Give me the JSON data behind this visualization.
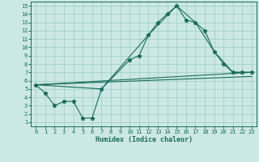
{
  "xlabel": "Humidex (Indice chaleur)",
  "bg_color": "#cce8e5",
  "grid_color": "#99ccc8",
  "line_color": "#1a6b5a",
  "xlim": [
    -0.5,
    23.5
  ],
  "ylim": [
    0.5,
    15.5
  ],
  "xticks": [
    0,
    1,
    2,
    3,
    4,
    5,
    6,
    7,
    8,
    9,
    10,
    11,
    12,
    13,
    14,
    15,
    16,
    17,
    18,
    19,
    20,
    21,
    22,
    23
  ],
  "yticks": [
    1,
    2,
    3,
    4,
    5,
    6,
    7,
    8,
    9,
    10,
    11,
    12,
    13,
    14,
    15
  ],
  "main_line_x": [
    0,
    1,
    2,
    3,
    4,
    5,
    6,
    7,
    10,
    11,
    12,
    13,
    14,
    15,
    16,
    17,
    18,
    19,
    20,
    21,
    22,
    23
  ],
  "main_line_y": [
    5.5,
    4.5,
    3.0,
    3.5,
    3.5,
    1.5,
    1.5,
    5.0,
    8.5,
    9.0,
    11.5,
    13.0,
    14.0,
    15.0,
    13.3,
    13.0,
    12.0,
    9.5,
    8.0,
    7.0,
    7.0,
    7.0
  ],
  "line2_x": [
    0,
    7,
    12,
    15,
    17,
    19,
    21,
    22,
    23
  ],
  "line2_y": [
    5.5,
    5.0,
    11.5,
    15.0,
    13.0,
    9.5,
    7.0,
    7.0,
    7.0
  ],
  "line3_x": [
    0,
    23
  ],
  "line3_y": [
    5.5,
    7.0
  ],
  "line4_x": [
    0,
    23
  ],
  "line4_y": [
    5.5,
    6.5
  ]
}
